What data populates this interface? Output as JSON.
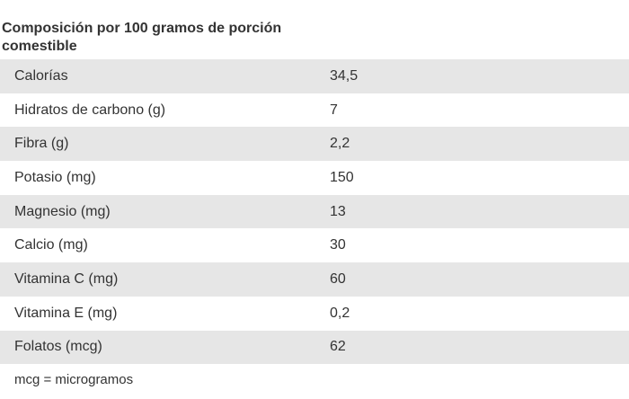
{
  "title": "Composición  por 100 gramos de porción comestible",
  "rows": [
    {
      "label": "Calorías",
      "value": "34,5"
    },
    {
      "label": "Hidratos de carbono (g)",
      "value": "7"
    },
    {
      "label": "Fibra (g)",
      "value": "2,2"
    },
    {
      "label": "Potasio (mg)",
      "value": "150"
    },
    {
      "label": "Magnesio (mg)",
      "value": "13"
    },
    {
      "label": "Calcio (mg)",
      "value": "30"
    },
    {
      "label": "Vitamina C (mg)",
      "value": "60"
    },
    {
      "label": "Vitamina E (mg)",
      "value": "0,2"
    },
    {
      "label": "Folatos (mcg)",
      "value": "62"
    }
  ],
  "footnote": "mcg = microgramos",
  "colors": {
    "row_shade": "#e6e6e6",
    "text": "#333333"
  }
}
